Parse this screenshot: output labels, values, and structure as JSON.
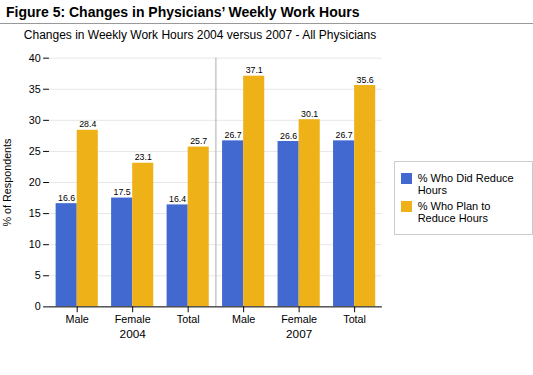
{
  "chart_data": {
    "type": "bar",
    "title": "Figure 5: Changes in Physicians’ Weekly Work Hours",
    "subtitle": "Changes in Weekly Work Hours 2004 versus 2007 - All Physicians",
    "ylabel": "% of Respondents",
    "categories": [
      "Male",
      "Female",
      "Total",
      "Male",
      "Female",
      "Total"
    ],
    "annotations": [
      "2004",
      "2007"
    ],
    "series": [
      {
        "name": "% Who Did Reduce Hours",
        "values": [
          16.6,
          17.5,
          16.4,
          26.7,
          26.6,
          26.7
        ]
      },
      {
        "name": "% Who Plan to Reduce Hours",
        "values": [
          28.4,
          23.1,
          25.7,
          37.1,
          30.1,
          35.6
        ]
      }
    ],
    "ylim": [
      0,
      40
    ],
    "yticks": [
      0,
      5,
      10,
      15,
      20,
      25,
      30,
      35,
      40
    ],
    "grid": true,
    "legend": "right",
    "data_labels": true
  }
}
